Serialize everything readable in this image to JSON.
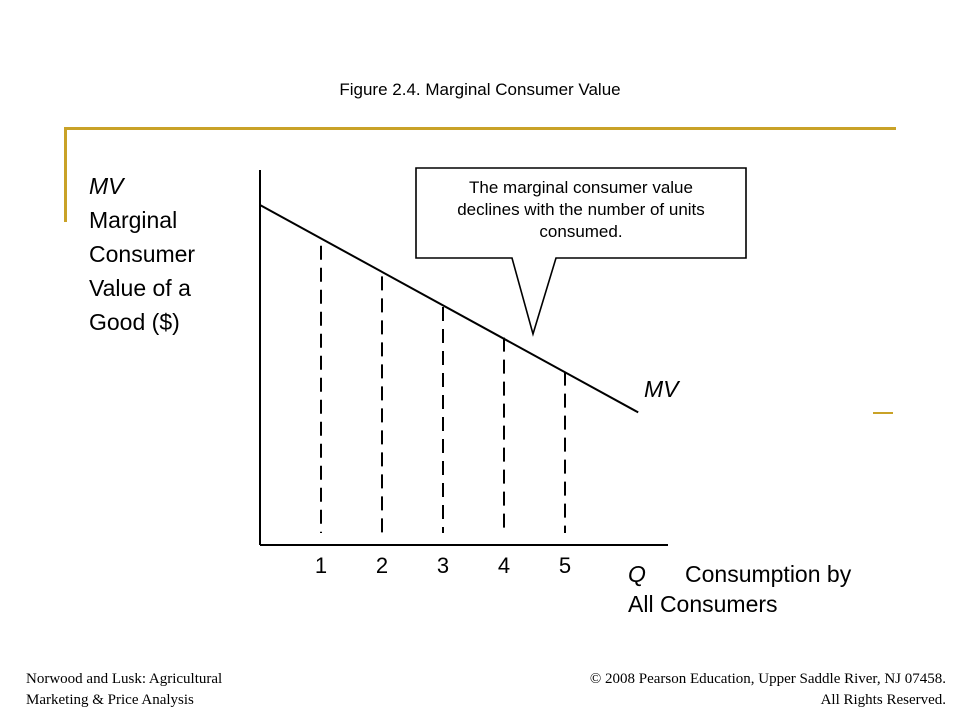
{
  "slide": {
    "title": "Figure 2.4.  Marginal Consumer Value",
    "accent_color": "#c9a227",
    "footer_left": [
      "Norwood and Lusk: Agricultural",
      "Marketing & Price Analysis"
    ],
    "footer_right": [
      "© 2008 Pearson Education, Upper Saddle River, NJ 07458.",
      "All Rights Reserved."
    ]
  },
  "chart_data": {
    "type": "line",
    "y_axis_label": [
      "MV",
      "Marginal",
      "Consumer",
      "Value of a",
      "Good ($)"
    ],
    "x_axis_label": {
      "symbol": "Q",
      "text": [
        "Consumption by",
        "All Consumers"
      ]
    },
    "x_ticks": [
      "1",
      "2",
      "3",
      "4",
      "5"
    ],
    "curve_label": "MV",
    "callout": [
      "The marginal consumer value",
      "declines with the number of units",
      "consumed."
    ],
    "series": [
      {
        "x": [
          0,
          1,
          2,
          3,
          4,
          5,
          6.2
        ],
        "y": [
          100,
          88,
          79,
          70,
          61,
          51,
          39
        ],
        "dashed_drops_at": [
          1,
          2,
          3,
          4,
          5
        ]
      }
    ],
    "grid": false
  }
}
